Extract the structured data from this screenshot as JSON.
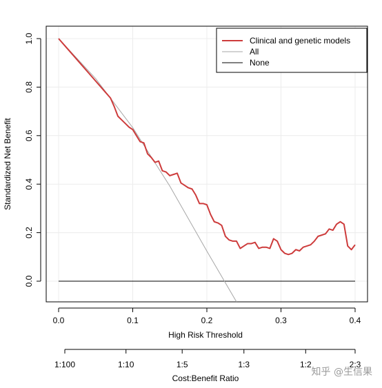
{
  "chart_data": {
    "type": "line",
    "title": "",
    "xlabel": "High Risk Threshold",
    "ylabel": "Standardized Net Benefit",
    "xlim": [
      0.0,
      0.4
    ],
    "ylim": [
      -0.09,
      1.02
    ],
    "x_ticks": [
      0.0,
      0.1,
      0.2,
      0.3,
      0.4
    ],
    "x_tick_labels": [
      "0.0",
      "0.1",
      "0.2",
      "0.3",
      "0.4"
    ],
    "y_ticks": [
      0.0,
      0.2,
      0.4,
      0.6,
      0.8,
      1.0
    ],
    "y_tick_labels": [
      "0.0",
      "0.2",
      "0.4",
      "0.6",
      "0.8",
      "1.0"
    ],
    "grid": true,
    "legend_position": "top-right",
    "secondary_axis": {
      "label": "Cost:Benefit Ratio",
      "ticks": [
        0.0,
        0.0909,
        0.1667,
        0.25,
        0.3333,
        0.4
      ],
      "tick_labels": [
        "1:100",
        "1:10",
        "1:5",
        "1:3",
        "1:2",
        "2:3"
      ]
    },
    "series": [
      {
        "name": "Clinical and genetic models",
        "color": "#cd3b3b",
        "x": [
          0.0,
          0.01,
          0.02,
          0.03,
          0.04,
          0.05,
          0.06,
          0.07,
          0.075,
          0.08,
          0.085,
          0.09,
          0.095,
          0.1,
          0.105,
          0.11,
          0.115,
          0.12,
          0.125,
          0.13,
          0.135,
          0.14,
          0.145,
          0.15,
          0.155,
          0.16,
          0.165,
          0.17,
          0.175,
          0.18,
          0.185,
          0.19,
          0.195,
          0.2,
          0.205,
          0.21,
          0.215,
          0.22,
          0.225,
          0.23,
          0.235,
          0.24,
          0.245,
          0.25,
          0.255,
          0.26,
          0.265,
          0.27,
          0.275,
          0.28,
          0.285,
          0.29,
          0.295,
          0.3,
          0.305,
          0.31,
          0.315,
          0.32,
          0.325,
          0.33,
          0.335,
          0.34,
          0.345,
          0.35,
          0.355,
          0.36,
          0.365,
          0.37,
          0.375,
          0.38,
          0.385,
          0.39,
          0.395,
          0.4
        ],
        "values": [
          1.0,
          0.965,
          0.93,
          0.895,
          0.86,
          0.825,
          0.79,
          0.755,
          0.72,
          0.68,
          0.665,
          0.65,
          0.635,
          0.625,
          0.6,
          0.575,
          0.57,
          0.525,
          0.51,
          0.49,
          0.495,
          0.455,
          0.45,
          0.435,
          0.44,
          0.445,
          0.405,
          0.395,
          0.385,
          0.38,
          0.355,
          0.32,
          0.32,
          0.315,
          0.275,
          0.245,
          0.24,
          0.23,
          0.185,
          0.17,
          0.165,
          0.165,
          0.135,
          0.145,
          0.155,
          0.155,
          0.16,
          0.135,
          0.14,
          0.14,
          0.135,
          0.175,
          0.165,
          0.13,
          0.115,
          0.11,
          0.115,
          0.13,
          0.125,
          0.14,
          0.145,
          0.15,
          0.165,
          0.185,
          0.19,
          0.195,
          0.215,
          0.21,
          0.235,
          0.245,
          0.235,
          0.145,
          0.13,
          0.15
        ]
      },
      {
        "name": "All",
        "color": "#a6a6a6",
        "x": [
          0.0,
          0.05,
          0.1,
          0.15,
          0.2,
          0.24
        ],
        "values": [
          1.0,
          0.835,
          0.633,
          0.392,
          0.124,
          -0.09
        ]
      },
      {
        "name": "None",
        "color": "#000000",
        "x": [
          0.0,
          0.4
        ],
        "values": [
          0.0,
          0.0
        ]
      }
    ]
  },
  "watermark": "知乎 @生信果"
}
